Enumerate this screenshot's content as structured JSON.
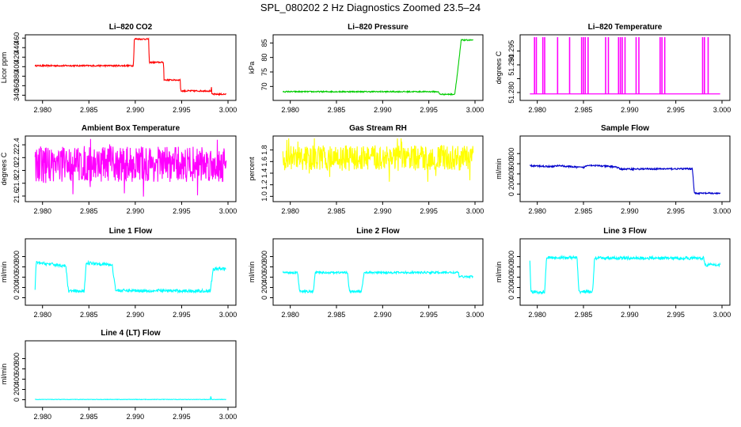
{
  "page": {
    "title": "SPL_080202  2 Hz Diagnostics Zoomed 23.5–24"
  },
  "colors": {
    "red": "#ff0000",
    "green": "#00cc00",
    "magenta": "#ff00ff",
    "yellow": "#ffff00",
    "blue": "#0000cc",
    "cyan": "#00ffff"
  },
  "chart_data": [
    {
      "type": "line",
      "title": "Li–820 CO2",
      "ylabel": "Licor ppm",
      "color": "#ff0000",
      "xlim": [
        2.979,
        3.0
      ],
      "xticks": [
        2.98,
        2.985,
        2.99,
        2.995,
        3.0
      ],
      "xtick_labels": [
        "2.980",
        "2.985",
        "2.990",
        "2.995",
        "3.000"
      ],
      "ylim": [
        334,
        462
      ],
      "yticks": [
        340,
        360,
        380,
        400,
        420,
        440,
        460
      ],
      "ytick_labels": [
        "340",
        "360",
        "380",
        "400",
        "420",
        "440",
        "460"
      ],
      "series": [
        {
          "name": "CO2",
          "noise": 1.5,
          "segments": [
            [
              2.9792,
              402
            ],
            [
              2.9898,
              402
            ],
            [
              2.9899,
              458
            ],
            [
              2.99145,
              458
            ],
            [
              2.9915,
              409
            ],
            [
              2.99305,
              409
            ],
            [
              2.9931,
              372
            ],
            [
              2.99485,
              372
            ],
            [
              2.9949,
              349
            ],
            [
              2.9982,
              349
            ],
            [
              2.99822,
              360
            ],
            [
              2.99824,
              342
            ],
            [
              2.9998,
              342
            ]
          ]
        }
      ]
    },
    {
      "type": "line",
      "title": "Li–820 Pressure",
      "ylabel": "kPa",
      "color": "#00cc00",
      "xlim": [
        2.979,
        3.0
      ],
      "xticks": [
        2.98,
        2.985,
        2.99,
        2.995,
        3.0
      ],
      "xtick_labels": [
        "2.980",
        "2.985",
        "2.990",
        "2.995",
        "3.000"
      ],
      "ylim": [
        66,
        87
      ],
      "yticks": [
        70,
        75,
        80,
        85
      ],
      "ytick_labels": [
        "70",
        "75",
        "80",
        "85"
      ],
      "series": [
        {
          "name": "Pressure",
          "noise": 0.2,
          "segments": [
            [
              2.9792,
              68.2
            ],
            [
              2.996,
              68.2
            ],
            [
              2.9962,
              67.3
            ],
            [
              2.9978,
              67.3
            ],
            [
              2.998,
              72
            ],
            [
              2.9983,
              80
            ],
            [
              2.9985,
              86
            ],
            [
              2.9998,
              86
            ]
          ]
        }
      ]
    },
    {
      "type": "line",
      "title": "Li–820 Temperature",
      "ylabel": "degrees C",
      "color": "#ff00ff",
      "xlim": [
        2.979,
        3.0
      ],
      "xticks": [
        2.98,
        2.985,
        2.99,
        2.995,
        3.0
      ],
      "xtick_labels": [
        "2.980",
        "2.985",
        "2.990",
        "2.995",
        "3.000"
      ],
      "ylim": [
        51.278,
        51.3
      ],
      "yticks": [
        51.28,
        51.285,
        51.29,
        51.295
      ],
      "ytick_labels": [
        "51.280",
        "",
        "51.290",
        "51.295"
      ],
      "series": [
        {
          "name": "Temperature",
          "base": 51.2795,
          "spike": 51.3,
          "spikes_x": [
            2.9797,
            2.9799,
            2.9806,
            2.9808,
            2.9822,
            2.9835,
            2.9848,
            2.985,
            2.9852,
            2.9855,
            2.9874,
            2.9877,
            2.9888,
            2.989,
            2.9892,
            2.9895,
            2.9907,
            2.991,
            2.9933,
            2.9935,
            2.9938,
            2.9979,
            2.9981,
            2.9985
          ]
        }
      ]
    },
    {
      "type": "line",
      "title": "Ambient Box Temperature",
      "ylabel": "degrees C",
      "color": "#ff00ff",
      "xlim": [
        2.979,
        3.0
      ],
      "xticks": [
        2.98,
        2.985,
        2.99,
        2.995,
        3.0
      ],
      "xtick_labels": [
        "2.980",
        "2.985",
        "2.990",
        "2.995",
        "3.000"
      ],
      "ylim": [
        21.55,
        22.5
      ],
      "yticks": [
        21.6,
        21.8,
        22.0,
        22.2,
        22.4
      ],
      "ytick_labels": [
        "21.6",
        "21.8",
        "22.0",
        "22.2",
        "22.4"
      ],
      "series": [
        {
          "name": "Ambient",
          "noise": 0.28,
          "noise_shape": "uniform",
          "segments": [
            [
              2.9792,
              22.1
            ],
            [
              2.9998,
              22.1
            ]
          ]
        }
      ]
    },
    {
      "type": "line",
      "title": "Gas Stream RH",
      "ylabel": "percent",
      "color": "#ffff00",
      "xlim": [
        2.979,
        3.0
      ],
      "xticks": [
        2.98,
        2.985,
        2.99,
        2.995,
        3.0
      ],
      "xtick_labels": [
        "2.980",
        "2.985",
        "2.990",
        "2.995",
        "3.000"
      ],
      "ylim": [
        0.95,
        2.0
      ],
      "yticks": [
        1.0,
        1.2,
        1.4,
        1.6,
        1.8
      ],
      "ytick_labels": [
        "1.0",
        "1.2",
        "1.4",
        "1.6",
        "1.8"
      ],
      "series": [
        {
          "name": "RH",
          "noise": 0.22,
          "noise_shape": "uniform",
          "segments": [
            [
              2.9792,
              1.66
            ],
            [
              2.9998,
              1.66
            ]
          ]
        }
      ]
    },
    {
      "type": "line",
      "title": "Sample Flow",
      "ylabel": "ml/min",
      "color": "#0000cc",
      "xlim": [
        2.979,
        3.0
      ],
      "xticks": [
        2.98,
        2.985,
        2.99,
        2.995,
        3.0
      ],
      "xtick_labels": [
        "2.980",
        "2.985",
        "2.990",
        "2.995",
        "3.000"
      ],
      "ylim": [
        -100,
        1100
      ],
      "yticks": [
        0,
        200,
        400,
        600,
        800
      ],
      "ytick_labels": [
        "0",
        "200",
        "400",
        "600",
        "800"
      ],
      "series": [
        {
          "name": "Sample Flow",
          "noise": 15,
          "segments": [
            [
              2.9792,
              560
            ],
            [
              2.9815,
              545
            ],
            [
              2.9825,
              565
            ],
            [
              2.983,
              550
            ],
            [
              2.985,
              525
            ],
            [
              2.9855,
              575
            ],
            [
              2.987,
              555
            ],
            [
              2.9885,
              540
            ],
            [
              2.989,
              495
            ],
            [
              2.9945,
              500
            ],
            [
              2.9968,
              500
            ],
            [
              2.997,
              20
            ],
            [
              2.9998,
              15
            ]
          ]
        }
      ]
    },
    {
      "type": "line",
      "title": "Line 1 Flow",
      "ylabel": "ml/min",
      "color": "#00ffff",
      "xlim": [
        2.979,
        3.0
      ],
      "xticks": [
        2.98,
        2.985,
        2.99,
        2.995,
        3.0
      ],
      "xtick_labels": [
        "2.980",
        "2.985",
        "2.990",
        "2.995",
        "3.000"
      ],
      "ylim": [
        -100,
        1100
      ],
      "yticks": [
        0,
        200,
        400,
        600,
        800
      ],
      "ytick_labels": [
        "0",
        "200",
        "400",
        "600",
        "800"
      ],
      "series": [
        {
          "name": "Line 1",
          "noise": 30,
          "segments": [
            [
              2.9792,
              130
            ],
            [
              2.9793,
              680
            ],
            [
              2.981,
              650
            ],
            [
              2.9825,
              620
            ],
            [
              2.9828,
              130
            ],
            [
              2.9845,
              120
            ],
            [
              2.9847,
              680
            ],
            [
              2.9875,
              640
            ],
            [
              2.9879,
              140
            ],
            [
              2.9981,
              130
            ],
            [
              2.9984,
              560
            ],
            [
              2.9998,
              560
            ]
          ]
        }
      ]
    },
    {
      "type": "line",
      "title": "Line 2 Flow",
      "ylabel": "ml/min",
      "color": "#00ffff",
      "xlim": [
        2.979,
        3.0
      ],
      "xticks": [
        2.98,
        2.985,
        2.99,
        2.995,
        3.0
      ],
      "xtick_labels": [
        "2.980",
        "2.985",
        "2.990",
        "2.995",
        "3.000"
      ],
      "ylim": [
        -100,
        1100
      ],
      "yticks": [
        0,
        200,
        400,
        600,
        800
      ],
      "ytick_labels": [
        "0",
        "200",
        "400",
        "600",
        "800"
      ],
      "series": [
        {
          "name": "Line 2",
          "noise": 20,
          "segments": [
            [
              2.9792,
              490
            ],
            [
              2.9808,
              490
            ],
            [
              2.981,
              120
            ],
            [
              2.9825,
              120
            ],
            [
              2.9827,
              490
            ],
            [
              2.9862,
              490
            ],
            [
              2.9864,
              120
            ],
            [
              2.9877,
              120
            ],
            [
              2.988,
              490
            ],
            [
              2.9982,
              490
            ],
            [
              2.9983,
              410
            ],
            [
              2.9998,
              410
            ]
          ]
        }
      ]
    },
    {
      "type": "line",
      "title": "Line 3 Flow",
      "ylabel": "ml/min",
      "color": "#00ffff",
      "xlim": [
        2.979,
        3.0
      ],
      "xticks": [
        2.98,
        2.985,
        2.99,
        2.995,
        3.0
      ],
      "xtick_labels": [
        "2.980",
        "2.985",
        "2.990",
        "2.995",
        "3.000"
      ],
      "ylim": [
        -100,
        1100
      ],
      "yticks": [
        0,
        200,
        400,
        600,
        800
      ],
      "ytick_labels": [
        "0",
        "200",
        "400",
        "600",
        "800"
      ],
      "series": [
        {
          "name": "Line 3",
          "noise": 30,
          "segments": [
            [
              2.9792,
              740
            ],
            [
              2.9793,
              110
            ],
            [
              2.9808,
              110
            ],
            [
              2.981,
              780
            ],
            [
              2.9843,
              780
            ],
            [
              2.9845,
              120
            ],
            [
              2.986,
              120
            ],
            [
              2.9862,
              770
            ],
            [
              2.998,
              770
            ],
            [
              2.9982,
              640
            ],
            [
              2.9998,
              640
            ]
          ]
        }
      ]
    },
    {
      "type": "line",
      "title": "Line 4 (LT) Flow",
      "ylabel": "ml/min",
      "color": "#00ffff",
      "xlim": [
        2.979,
        3.0
      ],
      "xticks": [
        2.98,
        2.985,
        2.99,
        2.995,
        3.0
      ],
      "xtick_labels": [
        "2.980",
        "2.985",
        "2.990",
        "2.995",
        "3.000"
      ],
      "ylim": [
        -100,
        1100
      ],
      "yticks": [
        0,
        200,
        400,
        600,
        800
      ],
      "ytick_labels": [
        "0",
        "200",
        "400",
        "600",
        "800"
      ],
      "series": [
        {
          "name": "Line 4",
          "noise": 4,
          "segments": [
            [
              2.9792,
              5
            ],
            [
              2.9981,
              5
            ],
            [
              2.99815,
              90
            ],
            [
              2.9982,
              5
            ],
            [
              2.9998,
              5
            ]
          ]
        }
      ]
    }
  ]
}
